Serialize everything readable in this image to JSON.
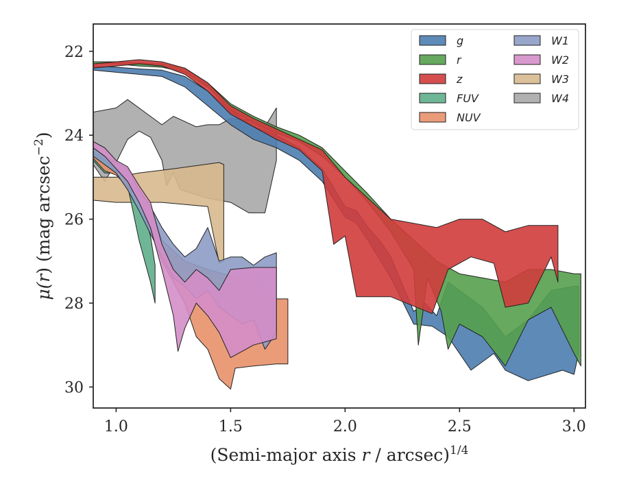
{
  "chart_data": {
    "type": "area",
    "xlabel_main": "(Semi-major axis ",
    "xlabel_var": "r",
    "xlabel_unit": " / arcsec)",
    "xlabel_exp": "1/4",
    "ylabel_main": "μ(",
    "ylabel_var": "r",
    "ylabel_unit": ") (mag arcsec",
    "ylabel_exp": "−2",
    "ylabel_close": ")",
    "xlim": [
      0.9,
      3.05
    ],
    "ylim": [
      30.5,
      21.35
    ],
    "xticks": [
      1.0,
      1.5,
      2.0,
      2.5,
      3.0
    ],
    "xtick_labels": [
      "1.0",
      "1.5",
      "2.0",
      "2.5",
      "3.0"
    ],
    "yticks": [
      22,
      24,
      26,
      28,
      30
    ],
    "ytick_labels": [
      "22",
      "24",
      "26",
      "28",
      "30"
    ],
    "legend": {
      "placement": "top-right",
      "columns": 2
    },
    "series": [
      {
        "name": "W4",
        "color": "#a8a8a8",
        "upper": [
          [
            0.9,
            23.45
          ],
          [
            1.0,
            23.35
          ],
          [
            1.05,
            23.15
          ],
          [
            1.15,
            23.55
          ],
          [
            1.2,
            23.75
          ],
          [
            1.25,
            23.55
          ],
          [
            1.35,
            23.8
          ],
          [
            1.4,
            23.75
          ],
          [
            1.45,
            23.75
          ],
          [
            1.5,
            23.6
          ],
          [
            1.6,
            23.65
          ],
          [
            1.65,
            23.8
          ],
          [
            1.7,
            23.35
          ]
        ],
        "lower": [
          [
            0.9,
            24.7
          ],
          [
            0.95,
            25.1
          ],
          [
            1.0,
            24.65
          ],
          [
            1.05,
            24.1
          ],
          [
            1.1,
            23.9
          ],
          [
            1.15,
            24.05
          ],
          [
            1.2,
            24.6
          ],
          [
            1.22,
            25.2
          ],
          [
            1.25,
            24.9
          ],
          [
            1.28,
            25.3
          ],
          [
            1.4,
            25.5
          ],
          [
            1.5,
            25.6
          ],
          [
            1.58,
            25.85
          ],
          [
            1.65,
            25.85
          ],
          [
            1.7,
            24.6
          ]
        ]
      },
      {
        "name": "W3",
        "color": "#d8b98e",
        "upper": [
          [
            0.9,
            25.0
          ],
          [
            1.0,
            25.0
          ],
          [
            1.1,
            24.9
          ],
          [
            1.25,
            24.8
          ],
          [
            1.45,
            24.65
          ],
          [
            1.47,
            24.7
          ]
        ],
        "lower": [
          [
            0.9,
            25.55
          ],
          [
            1.0,
            25.6
          ],
          [
            1.2,
            25.6
          ],
          [
            1.4,
            25.7
          ],
          [
            1.45,
            27.05
          ],
          [
            1.47,
            27.0
          ]
        ]
      },
      {
        "name": "FUV",
        "color": "#5fae8c",
        "upper": [
          [
            0.9,
            24.4
          ],
          [
            0.95,
            24.6
          ],
          [
            1.0,
            24.8
          ],
          [
            1.05,
            24.8
          ],
          [
            1.1,
            25.4
          ],
          [
            1.15,
            26.4
          ],
          [
            1.17,
            27.1
          ]
        ],
        "lower": [
          [
            0.9,
            24.6
          ],
          [
            0.95,
            24.9
          ],
          [
            1.0,
            24.9
          ],
          [
            1.05,
            25.2
          ],
          [
            1.1,
            26.5
          ],
          [
            1.15,
            27.5
          ],
          [
            1.17,
            28.0
          ]
        ]
      },
      {
        "name": "NUV",
        "color": "#e8916a",
        "upper": [
          [
            0.9,
            24.45
          ],
          [
            0.95,
            24.7
          ],
          [
            1.0,
            24.85
          ],
          [
            1.05,
            25.0
          ],
          [
            1.15,
            25.7
          ],
          [
            1.2,
            26.5
          ],
          [
            1.3,
            27.0
          ],
          [
            1.4,
            27.2
          ],
          [
            1.5,
            27.35
          ],
          [
            1.6,
            27.25
          ],
          [
            1.7,
            27.9
          ],
          [
            1.75,
            27.9
          ]
        ],
        "lower": [
          [
            0.9,
            24.55
          ],
          [
            0.95,
            24.85
          ],
          [
            1.0,
            24.95
          ],
          [
            1.1,
            25.5
          ],
          [
            1.2,
            27.0
          ],
          [
            1.3,
            28.0
          ],
          [
            1.35,
            28.8
          ],
          [
            1.4,
            29.1
          ],
          [
            1.45,
            29.8
          ],
          [
            1.5,
            30.05
          ],
          [
            1.52,
            29.55
          ],
          [
            1.6,
            29.5
          ],
          [
            1.7,
            29.45
          ],
          [
            1.75,
            29.45
          ]
        ]
      },
      {
        "name": "W1",
        "color": "#8e9cc5",
        "upper": [
          [
            0.9,
            24.3
          ],
          [
            0.95,
            24.5
          ],
          [
            1.0,
            24.65
          ],
          [
            1.05,
            24.8
          ],
          [
            1.1,
            25.3
          ],
          [
            1.15,
            25.7
          ],
          [
            1.2,
            26.2
          ],
          [
            1.25,
            26.6
          ],
          [
            1.3,
            26.9
          ],
          [
            1.35,
            26.7
          ],
          [
            1.4,
            26.2
          ],
          [
            1.45,
            27.0
          ],
          [
            1.5,
            26.9
          ],
          [
            1.55,
            26.9
          ],
          [
            1.6,
            27.1
          ],
          [
            1.65,
            26.9
          ],
          [
            1.7,
            26.8
          ]
        ],
        "lower": [
          [
            0.9,
            24.5
          ],
          [
            0.95,
            24.7
          ],
          [
            1.0,
            24.9
          ],
          [
            1.05,
            25.3
          ],
          [
            1.1,
            25.8
          ],
          [
            1.2,
            26.9
          ],
          [
            1.25,
            27.4
          ],
          [
            1.3,
            27.6
          ],
          [
            1.35,
            27.9
          ],
          [
            1.4,
            27.7
          ],
          [
            1.45,
            28.1
          ],
          [
            1.5,
            28.3
          ],
          [
            1.55,
            28.5
          ],
          [
            1.6,
            28.4
          ],
          [
            1.65,
            29.1
          ],
          [
            1.7,
            28.7
          ]
        ]
      },
      {
        "name": "W2",
        "color": "#d48ec8",
        "upper": [
          [
            0.9,
            24.15
          ],
          [
            0.95,
            24.3
          ],
          [
            1.0,
            24.6
          ],
          [
            1.05,
            24.75
          ],
          [
            1.1,
            25.2
          ],
          [
            1.15,
            25.6
          ],
          [
            1.2,
            26.6
          ],
          [
            1.25,
            27.2
          ],
          [
            1.3,
            27.5
          ],
          [
            1.35,
            27.2
          ],
          [
            1.4,
            27.4
          ],
          [
            1.45,
            27.7
          ],
          [
            1.5,
            27.2
          ],
          [
            1.6,
            27.15
          ],
          [
            1.7,
            27.15
          ]
        ],
        "lower": [
          [
            0.9,
            24.3
          ],
          [
            0.95,
            24.5
          ],
          [
            1.0,
            24.8
          ],
          [
            1.05,
            25.1
          ],
          [
            1.1,
            25.6
          ],
          [
            1.15,
            26.2
          ],
          [
            1.2,
            27.2
          ],
          [
            1.25,
            28.3
          ],
          [
            1.27,
            29.15
          ],
          [
            1.3,
            28.6
          ],
          [
            1.35,
            28.0
          ],
          [
            1.4,
            28.3
          ],
          [
            1.45,
            28.7
          ],
          [
            1.5,
            29.3
          ],
          [
            1.6,
            29.0
          ],
          [
            1.7,
            28.85
          ]
        ]
      },
      {
        "name": "g",
        "color": "#4c7db0",
        "upper": [
          [
            0.9,
            22.35
          ],
          [
            1.0,
            22.38
          ],
          [
            1.1,
            22.42
          ],
          [
            1.2,
            22.45
          ],
          [
            1.3,
            22.6
          ],
          [
            1.4,
            22.95
          ],
          [
            1.5,
            23.4
          ],
          [
            1.6,
            23.8
          ],
          [
            1.7,
            24.0
          ],
          [
            1.8,
            24.3
          ],
          [
            1.9,
            24.8
          ],
          [
            2.0,
            25.7
          ],
          [
            2.05,
            25.8
          ],
          [
            2.1,
            26.2
          ],
          [
            2.15,
            26.5
          ],
          [
            2.2,
            26.9
          ],
          [
            2.3,
            28.2
          ],
          [
            2.35,
            28.0
          ],
          [
            2.4,
            28.3
          ],
          [
            2.45,
            27.5
          ],
          [
            2.5,
            27.7
          ],
          [
            2.6,
            28.1
          ],
          [
            2.7,
            28.8
          ],
          [
            2.8,
            28.4
          ],
          [
            2.9,
            27.7
          ],
          [
            3.0,
            27.6
          ],
          [
            3.02,
            27.6
          ]
        ],
        "lower": [
          [
            0.9,
            22.45
          ],
          [
            1.0,
            22.5
          ],
          [
            1.1,
            22.55
          ],
          [
            1.2,
            22.6
          ],
          [
            1.3,
            22.85
          ],
          [
            1.4,
            23.3
          ],
          [
            1.5,
            23.75
          ],
          [
            1.6,
            24.1
          ],
          [
            1.7,
            24.3
          ],
          [
            1.8,
            24.6
          ],
          [
            1.9,
            25.1
          ],
          [
            2.0,
            25.95
          ],
          [
            2.05,
            26.1
          ],
          [
            2.1,
            26.5
          ],
          [
            2.2,
            27.4
          ],
          [
            2.3,
            28.5
          ],
          [
            2.38,
            28.55
          ],
          [
            2.45,
            28.8
          ],
          [
            2.55,
            29.6
          ],
          [
            2.65,
            29.2
          ],
          [
            2.7,
            29.6
          ],
          [
            2.8,
            29.85
          ],
          [
            2.95,
            29.6
          ],
          [
            3.0,
            29.7
          ],
          [
            3.02,
            29.2
          ]
        ]
      },
      {
        "name": "r",
        "color": "#55a04e",
        "upper": [
          [
            0.9,
            22.25
          ],
          [
            1.0,
            22.25
          ],
          [
            1.1,
            22.28
          ],
          [
            1.2,
            22.3
          ],
          [
            1.3,
            22.4
          ],
          [
            1.4,
            22.75
          ],
          [
            1.5,
            23.25
          ],
          [
            1.6,
            23.55
          ],
          [
            1.7,
            23.8
          ],
          [
            1.8,
            24.0
          ],
          [
            1.9,
            24.3
          ],
          [
            2.0,
            24.85
          ],
          [
            2.1,
            25.4
          ],
          [
            2.2,
            26.0
          ],
          [
            2.3,
            26.5
          ],
          [
            2.4,
            27.0
          ],
          [
            2.5,
            27.3
          ],
          [
            2.6,
            27.4
          ],
          [
            2.7,
            27.5
          ],
          [
            2.8,
            27.2
          ],
          [
            2.9,
            27.2
          ],
          [
            3.0,
            27.3
          ],
          [
            3.03,
            27.3
          ]
        ],
        "lower": [
          [
            0.9,
            22.3
          ],
          [
            1.0,
            22.3
          ],
          [
            1.1,
            22.35
          ],
          [
            1.2,
            22.38
          ],
          [
            1.3,
            22.5
          ],
          [
            1.4,
            22.85
          ],
          [
            1.5,
            23.4
          ],
          [
            1.6,
            23.7
          ],
          [
            1.7,
            23.95
          ],
          [
            1.8,
            24.15
          ],
          [
            1.9,
            24.5
          ],
          [
            2.0,
            25.0
          ],
          [
            2.1,
            25.6
          ],
          [
            2.2,
            26.3
          ],
          [
            2.3,
            27.2
          ],
          [
            2.32,
            29.0
          ],
          [
            2.36,
            27.4
          ],
          [
            2.42,
            28.2
          ],
          [
            2.45,
            29.1
          ],
          [
            2.5,
            28.5
          ],
          [
            2.6,
            28.8
          ],
          [
            2.7,
            29.5
          ],
          [
            2.8,
            28.4
          ],
          [
            2.9,
            28.1
          ],
          [
            3.0,
            29.2
          ],
          [
            3.03,
            29.5
          ]
        ]
      },
      {
        "name": "z",
        "color": "#d03c3c",
        "upper": [
          [
            0.9,
            22.3
          ],
          [
            1.0,
            22.25
          ],
          [
            1.1,
            22.2
          ],
          [
            1.2,
            22.25
          ],
          [
            1.3,
            22.4
          ],
          [
            1.4,
            22.75
          ],
          [
            1.5,
            23.3
          ],
          [
            1.6,
            23.6
          ],
          [
            1.7,
            23.85
          ],
          [
            1.8,
            24.1
          ],
          [
            1.9,
            24.35
          ],
          [
            2.0,
            25.0
          ],
          [
            2.1,
            25.5
          ],
          [
            2.2,
            26.0
          ],
          [
            2.4,
            26.2
          ],
          [
            2.5,
            26.0
          ],
          [
            2.6,
            26.0
          ],
          [
            2.7,
            26.3
          ],
          [
            2.8,
            26.15
          ],
          [
            2.93,
            26.15
          ]
        ],
        "lower": [
          [
            0.9,
            22.4
          ],
          [
            1.0,
            22.35
          ],
          [
            1.1,
            22.3
          ],
          [
            1.2,
            22.35
          ],
          [
            1.3,
            22.55
          ],
          [
            1.4,
            22.95
          ],
          [
            1.5,
            23.5
          ],
          [
            1.6,
            23.8
          ],
          [
            1.7,
            24.1
          ],
          [
            1.8,
            24.35
          ],
          [
            1.9,
            24.85
          ],
          [
            1.95,
            26.6
          ],
          [
            2.0,
            26.4
          ],
          [
            2.05,
            27.85
          ],
          [
            2.2,
            27.85
          ],
          [
            2.38,
            28.25
          ],
          [
            2.45,
            27.2
          ],
          [
            2.55,
            26.9
          ],
          [
            2.65,
            27.05
          ],
          [
            2.7,
            28.1
          ],
          [
            2.8,
            28.0
          ],
          [
            2.9,
            26.9
          ],
          [
            2.93,
            27.5
          ]
        ]
      }
    ]
  }
}
